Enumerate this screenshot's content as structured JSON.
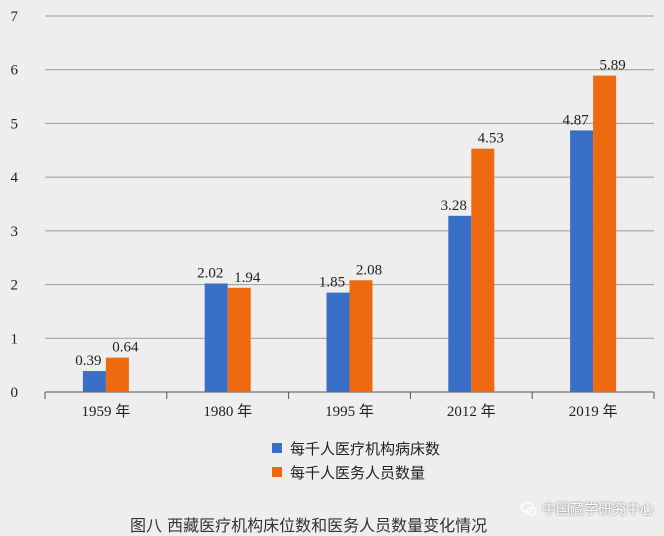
{
  "chart_data": {
    "type": "bar",
    "categories": [
      "1959 年",
      "1980 年",
      "1995 年",
      "2012 年",
      "2019 年"
    ],
    "series": [
      {
        "name": "每千人医疗机构病床数",
        "values": [
          0.39,
          2.02,
          1.85,
          3.28,
          4.87
        ],
        "color": "#3a6fc7"
      },
      {
        "name": "每千人医务人员数量",
        "values": [
          0.64,
          1.94,
          2.08,
          4.53,
          5.89
        ],
        "color": "#ee6a10"
      }
    ],
    "ylim": [
      0,
      7
    ],
    "yticks": [
      0,
      1,
      2,
      3,
      4,
      5,
      6,
      7
    ],
    "grid": true,
    "legend_position": "bottom-center"
  },
  "caption": "图八  西藏医疗机构床位数和医务人员数量变化情况",
  "watermark": "中国藏学研究中心",
  "watermark_icon": "wechat-icon"
}
